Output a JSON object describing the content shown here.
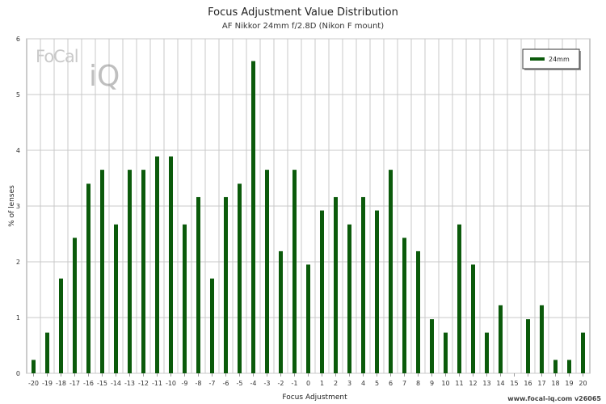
{
  "chart_data": {
    "type": "bar",
    "title": "Focus Adjustment Value Distribution",
    "subtitle": "AF Nikkor 24mm f/2.8D (Nikon F mount)",
    "xlabel": "Focus Adjustment",
    "ylabel": "% of lenses",
    "ylim": [
      0,
      6
    ],
    "yticks": [
      0,
      1,
      2,
      3,
      4,
      5,
      6
    ],
    "grid": true,
    "legend_position": "top-right",
    "categories": [
      "-20",
      "-19",
      "-18",
      "-17",
      "-16",
      "-15",
      "-14",
      "-13",
      "-12",
      "-11",
      "-10",
      "-9",
      "-8",
      "-7",
      "-6",
      "-5",
      "-4",
      "-3",
      "-2",
      "-1",
      "0",
      "1",
      "2",
      "3",
      "4",
      "5",
      "6",
      "7",
      "8",
      "9",
      "10",
      "11",
      "12",
      "13",
      "14",
      "15",
      "16",
      "17",
      "18",
      "19",
      "20"
    ],
    "series": [
      {
        "name": "24mm",
        "color": "#0b5a0b",
        "values": [
          0.24,
          0.73,
          1.7,
          2.43,
          3.4,
          3.65,
          2.67,
          3.65,
          3.65,
          3.89,
          3.89,
          2.67,
          3.16,
          1.7,
          3.16,
          3.4,
          5.6,
          3.65,
          2.19,
          3.65,
          1.95,
          2.92,
          3.16,
          2.67,
          3.16,
          2.92,
          3.65,
          2.43,
          2.19,
          0.97,
          0.73,
          2.67,
          1.95,
          0.73,
          1.22,
          0,
          0.97,
          1.22,
          0.24,
          0.24,
          0.73
        ]
      }
    ]
  },
  "logo": {
    "text": "FoCal",
    "mark": "iQ"
  },
  "footer": {
    "text": "www.focal-iq.com v26065"
  }
}
